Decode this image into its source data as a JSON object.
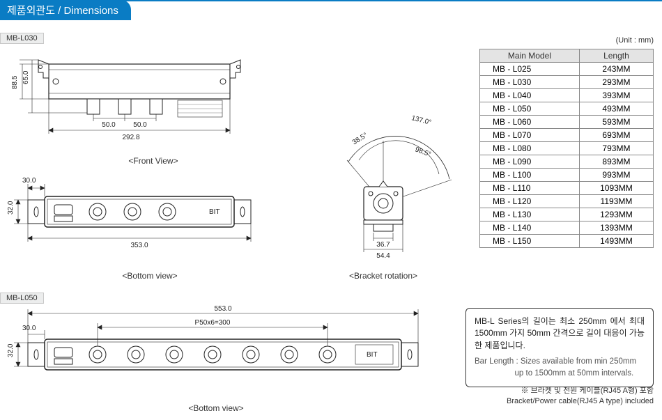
{
  "header": {
    "title_ko": "제품외관도",
    "title_en": "Dimensions",
    "separator": " / "
  },
  "unit_label": "(Unit : mm)",
  "model_tags": {
    "l030": "MB-L030",
    "l050": "MB-L050"
  },
  "captions": {
    "front": "<Front View>",
    "bottom": "<Bottom view>",
    "bracket": "<Bracket rotation>"
  },
  "front_view_l030": {
    "height_outer": "88.5",
    "height_inner": "65.0",
    "width": "292.8",
    "hole_pitch_a": "50.0",
    "hole_pitch_b": "50.0"
  },
  "bottom_view_l030": {
    "bracket_offset": "30.0",
    "height": "32.0",
    "width": "353.0",
    "brand": "BIT"
  },
  "bracket_rotation": {
    "angle_left": "38.5°",
    "angle_right": "98.5°",
    "angle_total": "137.0°",
    "inner_w": "36.7",
    "outer_w": "54.4"
  },
  "bottom_view_l050": {
    "bracket_offset": "30.0",
    "height": "32.0",
    "width": "553.0",
    "pitch": "P50x6=300",
    "brand": "BIT"
  },
  "table": {
    "header_model": "Main Model",
    "header_length": "Length",
    "rows": [
      {
        "model": "MB - L025",
        "length": "243MM"
      },
      {
        "model": "MB - L030",
        "length": "293MM"
      },
      {
        "model": "MB - L040",
        "length": "393MM"
      },
      {
        "model": "MB - L050",
        "length": "493MM"
      },
      {
        "model": "MB - L060",
        "length": "593MM"
      },
      {
        "model": "MB - L070",
        "length": "693MM"
      },
      {
        "model": "MB - L080",
        "length": "793MM"
      },
      {
        "model": "MB - L090",
        "length": "893MM"
      },
      {
        "model": "MB - L100",
        "length": "993MM"
      },
      {
        "model": "MB - L110",
        "length": "1093MM"
      },
      {
        "model": "MB - L120",
        "length": "1193MM"
      },
      {
        "model": "MB - L130",
        "length": "1293MM"
      },
      {
        "model": "MB - L140",
        "length": "1393MM"
      },
      {
        "model": "MB - L150",
        "length": "1493MM"
      }
    ]
  },
  "callout": {
    "ko": "MB-L Series의 길이는 최소 250mm 에서 최대 1500mm 가지 50mm 간격으로 길이 대응이 가능한 제품입니다.",
    "en1": "Bar Length : Sizes available from min 250mm",
    "en2": "up to 1500mm at 50mm intervals."
  },
  "foot_note": {
    "ko": "※ 브라켓 및 전원 케이블(RJ45 A형) 포함",
    "en": "Bracket/Power cable(RJ45 A type) included"
  },
  "colors": {
    "primary": "#0a7cc4",
    "line": "#222222",
    "fill_light": "#f4f4f4",
    "border": "#888888"
  }
}
